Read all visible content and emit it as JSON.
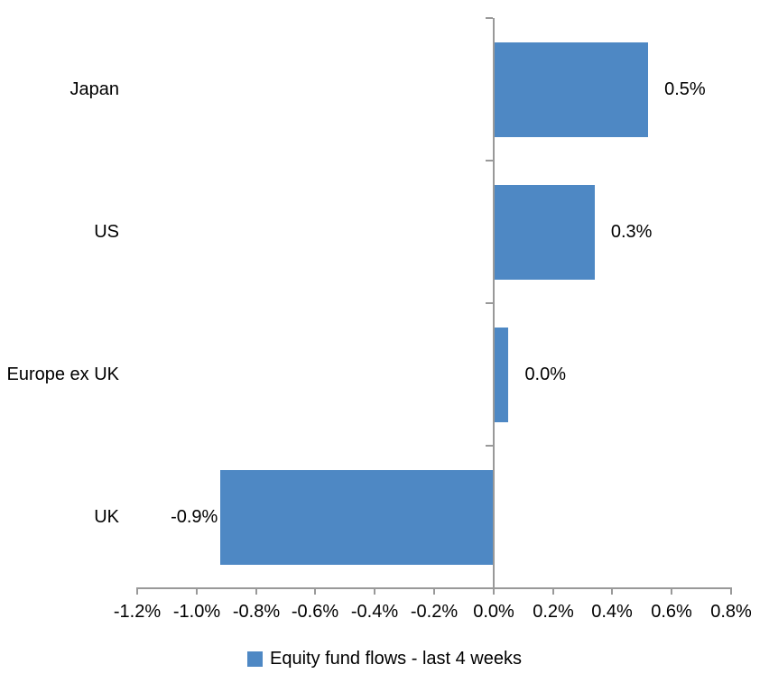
{
  "chart_data": {
    "type": "bar",
    "orientation": "horizontal",
    "title": "",
    "categories": [
      "Japan",
      "US",
      "Europe ex UK",
      "UK"
    ],
    "series": [
      {
        "name": "Equity fund flows - last 4 weeks",
        "values": [
          0.52,
          0.34,
          0.05,
          -0.92
        ],
        "data_labels": [
          "0.5%",
          "0.3%",
          "0.0%",
          "-0.9%"
        ]
      }
    ],
    "xlim": [
      -1.2,
      0.8
    ],
    "x_tick_values": [
      -1.2,
      -1.0,
      -0.8,
      -0.6,
      -0.4,
      -0.2,
      0.0,
      0.2,
      0.4,
      0.6,
      0.8
    ],
    "x_tick_labels": [
      "-1.2%",
      "-1.0%",
      "-0.8%",
      "-0.6%",
      "-0.4%",
      "-0.2%",
      "0.0%",
      "0.2%",
      "0.4%",
      "0.6%",
      "0.8%"
    ],
    "legend": [
      "Equity fund flows - last 4 weeks"
    ],
    "legend_position": "bottom",
    "grid": false,
    "bar_color": "#4E88C4",
    "axis_color": "#999999",
    "text_color": "#000000"
  }
}
